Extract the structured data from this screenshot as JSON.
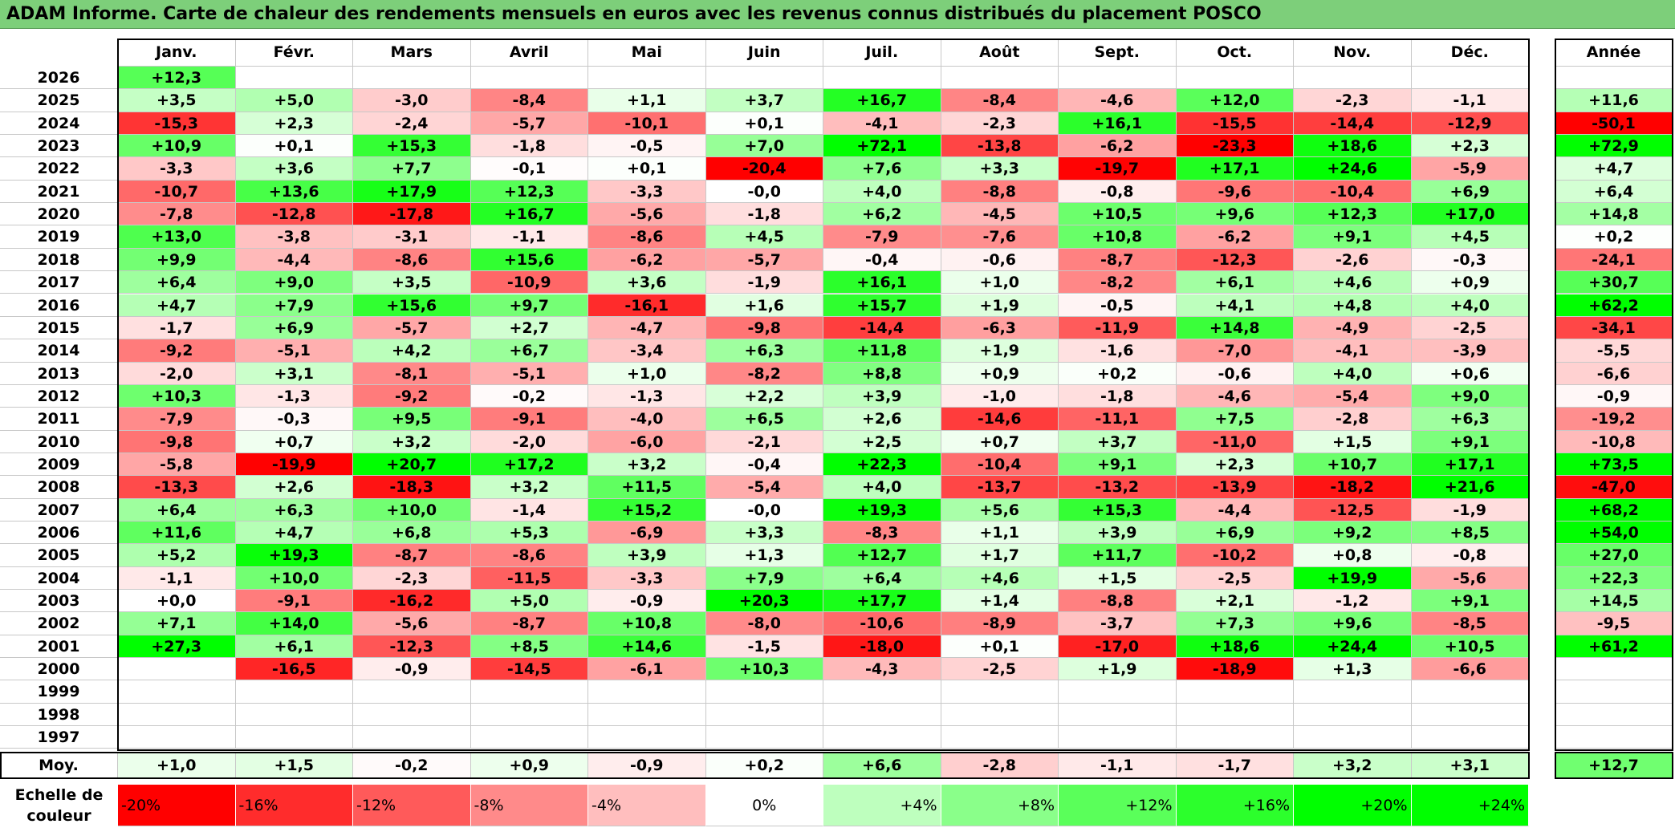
{
  "title": "ADAM Informe. Carte de chaleur des rendements mensuels en euros avec les revenus connus distribués du placement POSCO",
  "chart_data": {
    "type": "heatmap",
    "title": "ADAM Informe. Carte de chaleur des rendements mensuels en euros avec les revenus connus distribués du placement POSCO",
    "columns": [
      "Janv.",
      "Févr.",
      "Mars",
      "Avril",
      "Mai",
      "Juin",
      "Juil.",
      "Août",
      "Sept.",
      "Oct.",
      "Nov.",
      "Déc."
    ],
    "year_column": "Année",
    "rows": [
      {
        "year": "2026",
        "months": [
          "+12,3",
          "",
          "",
          "",
          "",
          "",
          "",
          "",
          "",
          "",
          "",
          ""
        ],
        "annual": ""
      },
      {
        "year": "2025",
        "months": [
          "+3,5",
          "+5,0",
          "-3,0",
          "-8,4",
          "+1,1",
          "+3,7",
          "+16,7",
          "-8,4",
          "-4,6",
          "+12,0",
          "-2,3",
          "-1,1"
        ],
        "annual": "+11,6"
      },
      {
        "year": "2024",
        "months": [
          "-15,3",
          "+2,3",
          "-2,4",
          "-5,7",
          "-10,1",
          "+0,1",
          "-4,1",
          "-2,3",
          "+16,1",
          "-15,5",
          "-14,4",
          "-12,9"
        ],
        "annual": "-50,1"
      },
      {
        "year": "2023",
        "months": [
          "+10,9",
          "+0,1",
          "+15,3",
          "-1,8",
          "-0,5",
          "+7,0",
          "+72,1",
          "-13,8",
          "-6,2",
          "-23,3",
          "+18,6",
          "+2,3"
        ],
        "annual": "+72,9"
      },
      {
        "year": "2022",
        "months": [
          "-3,3",
          "+3,6",
          "+7,7",
          "-0,1",
          "+0,1",
          "-20,4",
          "+7,6",
          "+3,3",
          "-19,7",
          "+17,1",
          "+24,6",
          "-5,9"
        ],
        "annual": "+4,7"
      },
      {
        "year": "2021",
        "months": [
          "-10,7",
          "+13,6",
          "+17,9",
          "+12,3",
          "-3,3",
          "-0,0",
          "+4,0",
          "-8,8",
          "-0,8",
          "-9,6",
          "-10,4",
          "+6,9"
        ],
        "annual": "+6,4"
      },
      {
        "year": "2020",
        "months": [
          "-7,8",
          "-12,8",
          "-17,8",
          "+16,7",
          "-5,6",
          "-1,8",
          "+6,2",
          "-4,5",
          "+10,5",
          "+9,6",
          "+12,3",
          "+17,0"
        ],
        "annual": "+14,8"
      },
      {
        "year": "2019",
        "months": [
          "+13,0",
          "-3,8",
          "-3,1",
          "-1,1",
          "-8,6",
          "+4,5",
          "-7,9",
          "-7,6",
          "+10,8",
          "-6,2",
          "+9,1",
          "+4,5"
        ],
        "annual": "+0,2"
      },
      {
        "year": "2018",
        "months": [
          "+9,9",
          "-4,4",
          "-8,6",
          "+15,6",
          "-6,2",
          "-5,7",
          "-0,4",
          "-0,6",
          "-8,7",
          "-12,3",
          "-2,6",
          "-0,3"
        ],
        "annual": "-24,1"
      },
      {
        "year": "2017",
        "months": [
          "+6,4",
          "+9,0",
          "+3,5",
          "-10,9",
          "+3,6",
          "-1,9",
          "+16,1",
          "+1,0",
          "-8,2",
          "+6,1",
          "+4,6",
          "+0,9"
        ],
        "annual": "+30,7"
      },
      {
        "year": "2016",
        "months": [
          "+4,7",
          "+7,9",
          "+15,6",
          "+9,7",
          "-16,1",
          "+1,6",
          "+15,7",
          "+1,9",
          "-0,5",
          "+4,1",
          "+4,8",
          "+4,0"
        ],
        "annual": "+62,2"
      },
      {
        "year": "2015",
        "months": [
          "-1,7",
          "+6,9",
          "-5,7",
          "+2,7",
          "-4,7",
          "-9,8",
          "-14,4",
          "-6,3",
          "-11,9",
          "+14,8",
          "-4,9",
          "-2,5"
        ],
        "annual": "-34,1"
      },
      {
        "year": "2014",
        "months": [
          "-9,2",
          "-5,1",
          "+4,2",
          "+6,7",
          "-3,4",
          "+6,3",
          "+11,8",
          "+1,9",
          "-1,6",
          "-7,0",
          "-4,1",
          "-3,9"
        ],
        "annual": "-5,5"
      },
      {
        "year": "2013",
        "months": [
          "-2,0",
          "+3,1",
          "-8,1",
          "-5,1",
          "+1,0",
          "-8,2",
          "+8,8",
          "+0,9",
          "+0,2",
          "-0,6",
          "+4,0",
          "+0,6"
        ],
        "annual": "-6,6"
      },
      {
        "year": "2012",
        "months": [
          "+10,3",
          "-1,3",
          "-9,2",
          "-0,2",
          "-1,3",
          "+2,2",
          "+3,9",
          "-1,0",
          "-1,8",
          "-4,6",
          "-5,4",
          "+9,0"
        ],
        "annual": "-0,9"
      },
      {
        "year": "2011",
        "months": [
          "-7,9",
          "-0,3",
          "+9,5",
          "-9,1",
          "-4,0",
          "+6,5",
          "+2,6",
          "-14,6",
          "-11,1",
          "+7,5",
          "-2,8",
          "+6,3"
        ],
        "annual": "-19,2"
      },
      {
        "year": "2010",
        "months": [
          "-9,8",
          "+0,7",
          "+3,2",
          "-2,0",
          "-6,0",
          "-2,1",
          "+2,5",
          "+0,7",
          "+3,7",
          "-11,0",
          "+1,5",
          "+9,1"
        ],
        "annual": "-10,8"
      },
      {
        "year": "2009",
        "months": [
          "-5,8",
          "-19,9",
          "+20,7",
          "+17,2",
          "+3,2",
          "-0,4",
          "+22,3",
          "-10,4",
          "+9,1",
          "+2,3",
          "+10,7",
          "+17,1"
        ],
        "annual": "+73,5"
      },
      {
        "year": "2008",
        "months": [
          "-13,3",
          "+2,6",
          "-18,3",
          "+3,2",
          "+11,5",
          "-5,4",
          "+4,0",
          "-13,7",
          "-13,2",
          "-13,9",
          "-18,2",
          "+21,6"
        ],
        "annual": "-47,0"
      },
      {
        "year": "2007",
        "months": [
          "+6,4",
          "+6,3",
          "+10,0",
          "-1,4",
          "+15,2",
          "-0,0",
          "+19,3",
          "+5,6",
          "+15,3",
          "-4,4",
          "-12,5",
          "-1,9"
        ],
        "annual": "+68,2"
      },
      {
        "year": "2006",
        "months": [
          "+11,6",
          "+4,7",
          "+6,8",
          "+5,3",
          "-6,9",
          "+3,3",
          "-8,3",
          "+1,1",
          "+3,9",
          "+6,9",
          "+9,2",
          "+8,5"
        ],
        "annual": "+54,0"
      },
      {
        "year": "2005",
        "months": [
          "+5,2",
          "+19,3",
          "-8,7",
          "-8,6",
          "+3,9",
          "+1,3",
          "+12,7",
          "+1,7",
          "+11,7",
          "-10,2",
          "+0,8",
          "-0,8"
        ],
        "annual": "+27,0"
      },
      {
        "year": "2004",
        "months": [
          "-1,1",
          "+10,0",
          "-2,3",
          "-11,5",
          "-3,3",
          "+7,9",
          "+6,4",
          "+4,6",
          "+1,5",
          "-2,5",
          "+19,9",
          "-5,6"
        ],
        "annual": "+22,3"
      },
      {
        "year": "2003",
        "months": [
          "+0,0",
          "-9,1",
          "-16,2",
          "+5,0",
          "-0,9",
          "+20,3",
          "+17,7",
          "+1,4",
          "-8,8",
          "+2,1",
          "-1,2",
          "+9,1"
        ],
        "annual": "+14,5"
      },
      {
        "year": "2002",
        "months": [
          "+7,1",
          "+14,0",
          "-5,6",
          "-8,7",
          "+10,8",
          "-8,0",
          "-10,6",
          "-8,9",
          "-3,7",
          "+7,3",
          "+9,6",
          "-8,5"
        ],
        "annual": "-9,5"
      },
      {
        "year": "2001",
        "months": [
          "+27,3",
          "+6,1",
          "-12,3",
          "+8,5",
          "+14,6",
          "-1,5",
          "-18,0",
          "+0,1",
          "-17,0",
          "+18,6",
          "+24,4",
          "+10,5"
        ],
        "annual": "+61,2"
      },
      {
        "year": "2000",
        "months": [
          "",
          "-16,5",
          "-0,9",
          "-14,5",
          "-6,1",
          "+10,3",
          "-4,3",
          "-2,5",
          "+1,9",
          "-18,9",
          "+1,3",
          "-6,6"
        ],
        "annual": ""
      },
      {
        "year": "1999",
        "months": [
          "",
          "",
          "",
          "",
          "",
          "",
          "",
          "",
          "",
          "",
          "",
          ""
        ],
        "annual": ""
      },
      {
        "year": "1998",
        "months": [
          "",
          "",
          "",
          "",
          "",
          "",
          "",
          "",
          "",
          "",
          "",
          ""
        ],
        "annual": ""
      },
      {
        "year": "1997",
        "months": [
          "",
          "",
          "",
          "",
          "",
          "",
          "",
          "",
          "",
          "",
          "",
          ""
        ],
        "annual": ""
      }
    ],
    "average": {
      "label": "Moy.",
      "months": [
        "+1,0",
        "+1,5",
        "-0,2",
        "+0,9",
        "-0,9",
        "+0,2",
        "+6,6",
        "-2,8",
        "-1,1",
        "-1,7",
        "+3,2",
        "+3,1"
      ],
      "annual": "+12,7"
    },
    "color_scale": {
      "label": "Echelle de couleur",
      "stops": [
        "-20%",
        "-16%",
        "-12%",
        "-8%",
        "-4%",
        "0%",
        "+4%",
        "+8%",
        "+12%",
        "+16%",
        "+20%",
        "+24%"
      ]
    },
    "colors": {
      "negative": "#ff0000",
      "neutral": "#ffffff",
      "positive": "#00ff00"
    }
  }
}
